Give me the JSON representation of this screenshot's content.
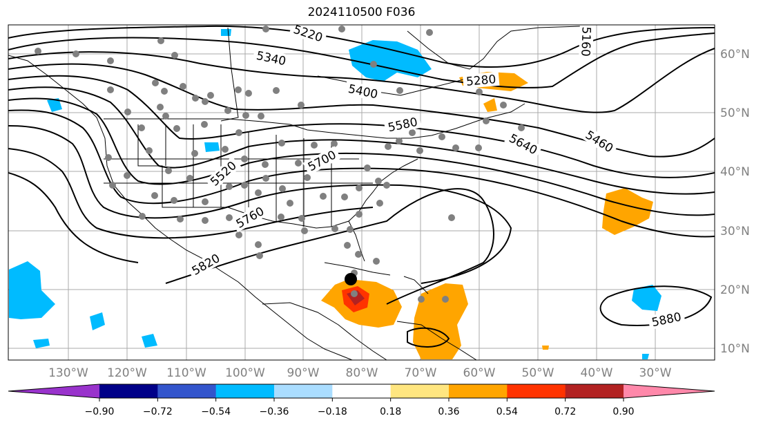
{
  "title": "2024110500 F036",
  "map": {
    "lon_labels": [
      "130°W",
      "120°W",
      "110°W",
      "100°W",
      "90°W",
      "80°W",
      "70°W",
      "60°W",
      "50°W",
      "40°W",
      "30°W"
    ],
    "lat_labels": [
      "60°N",
      "50°N",
      "40°N",
      "30°N",
      "20°N",
      "10°N"
    ],
    "contour_labels": [
      "5220",
      "5340",
      "5400",
      "5280",
      "5160",
      "5460",
      "5580",
      "5640",
      "5520",
      "5700",
      "5760",
      "5820",
      "5880"
    ]
  },
  "colorbar": {
    "ticks": [
      "−0.90",
      "−0.72",
      "−0.54",
      "−0.36",
      "−0.18",
      "0.18",
      "0.36",
      "0.54",
      "0.72",
      "0.90"
    ],
    "colors": [
      "#9933cc",
      "#000088",
      "#3355cc",
      "#00bbff",
      "#aaddff",
      "#ffffff",
      "#ffe680",
      "#ffa500",
      "#ff3300",
      "#b22222",
      "#ff88aa"
    ]
  }
}
